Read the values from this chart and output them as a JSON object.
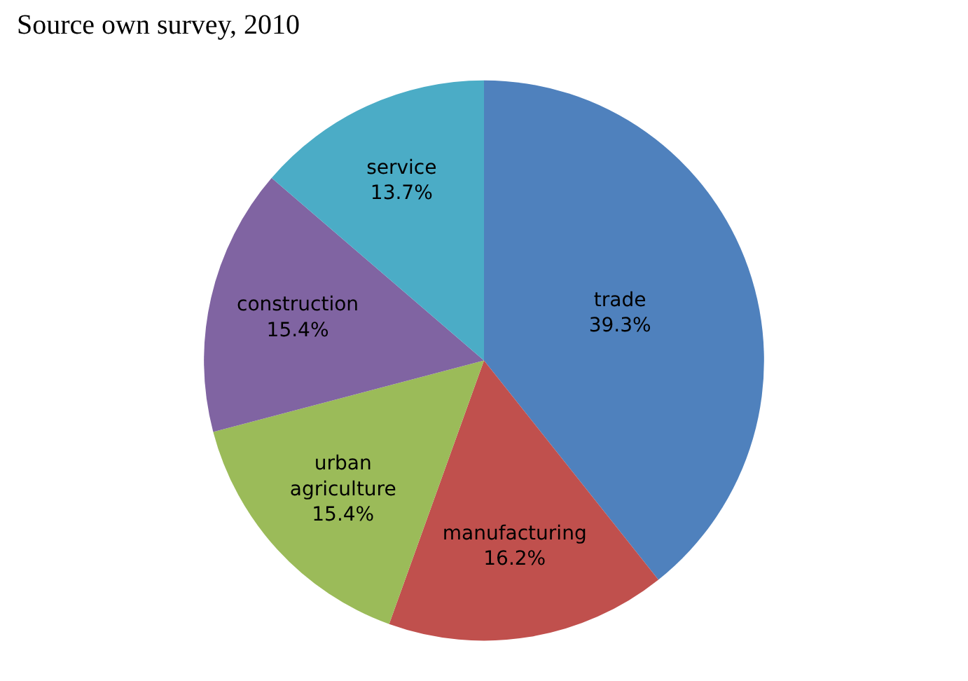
{
  "chart_data": {
    "type": "pie",
    "categories": [
      "trade",
      "manufacturing",
      "urban agriculture",
      "construction",
      "service"
    ],
    "values": [
      39.3,
      16.2,
      15.4,
      15.4,
      13.7
    ],
    "colors": [
      "#4f81bd",
      "#c0504d",
      "#9bbb59",
      "#8064a2",
      "#4bacc6"
    ],
    "value_labels": [
      "39.3%",
      "16.2%",
      "15.4%",
      "15.4%",
      "13.7%"
    ],
    "legend": false,
    "annotations": [
      "Source own survey, 2010"
    ]
  }
}
